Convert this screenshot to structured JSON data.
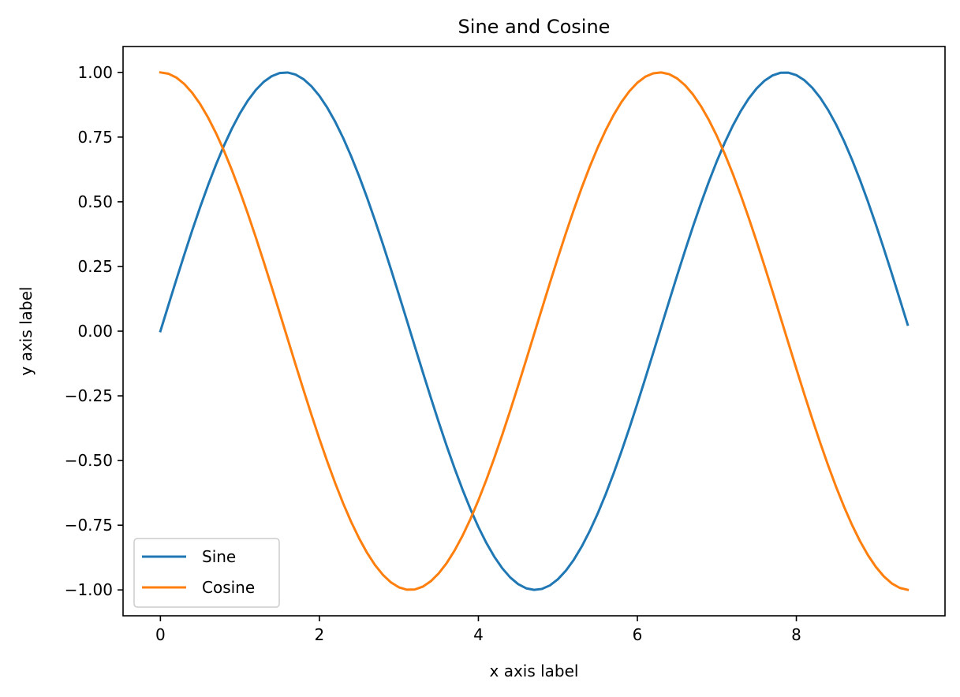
{
  "chart_data": {
    "type": "line",
    "title": "Sine and Cosine",
    "xlabel": "x axis label",
    "ylabel": "y axis label",
    "xlim": [
      -0.47,
      9.87
    ],
    "ylim": [
      -1.1,
      1.1
    ],
    "x_ticks": [
      {
        "value": 0,
        "label": "0"
      },
      {
        "value": 2,
        "label": "2"
      },
      {
        "value": 4,
        "label": "4"
      },
      {
        "value": 6,
        "label": "6"
      },
      {
        "value": 8,
        "label": "8"
      }
    ],
    "y_ticks": [
      {
        "value": 1.0,
        "label": "1.00"
      },
      {
        "value": 0.75,
        "label": "0.75"
      },
      {
        "value": 0.5,
        "label": "0.50"
      },
      {
        "value": 0.25,
        "label": "0.25"
      },
      {
        "value": 0.0,
        "label": "0.00"
      },
      {
        "value": -0.25,
        "label": "−0.25"
      },
      {
        "value": -0.5,
        "label": "−0.50"
      },
      {
        "value": -0.75,
        "label": "−0.75"
      },
      {
        "value": -1.0,
        "label": "−1.00"
      }
    ],
    "grid": false,
    "legend_position": "lower-left",
    "x": [
      0.0,
      0.1,
      0.2,
      0.3,
      0.4,
      0.5,
      0.6,
      0.7,
      0.8,
      0.9,
      1.0,
      1.1,
      1.2,
      1.3,
      1.4,
      1.5,
      1.6,
      1.7,
      1.8,
      1.9,
      2.0,
      2.1,
      2.2,
      2.3,
      2.4,
      2.5,
      2.6,
      2.7,
      2.8,
      2.9,
      3.0,
      3.1,
      3.2,
      3.3,
      3.4,
      3.5,
      3.6,
      3.7,
      3.8,
      3.9,
      4.0,
      4.1,
      4.2,
      4.3,
      4.4,
      4.5,
      4.6,
      4.7,
      4.8,
      4.9,
      5.0,
      5.1,
      5.2,
      5.3,
      5.4,
      5.5,
      5.6,
      5.7,
      5.8,
      5.9,
      6.0,
      6.1,
      6.2,
      6.3,
      6.4,
      6.5,
      6.6,
      6.7,
      6.8,
      6.9,
      7.0,
      7.1,
      7.2,
      7.3,
      7.4,
      7.5,
      7.6,
      7.7,
      7.8,
      7.9,
      8.0,
      8.1,
      8.2,
      8.3,
      8.4,
      8.5,
      8.6,
      8.7,
      8.8,
      8.9,
      9.0,
      9.1,
      9.2,
      9.3,
      9.4
    ],
    "series": [
      {
        "name": "Sine",
        "color": "#1f77b4",
        "values": [
          0.0,
          0.0998,
          0.1987,
          0.2955,
          0.3894,
          0.4794,
          0.5646,
          0.6442,
          0.7174,
          0.7833,
          0.8415,
          0.8912,
          0.932,
          0.9636,
          0.9854,
          0.9975,
          0.9996,
          0.9917,
          0.9738,
          0.9463,
          0.9093,
          0.8632,
          0.8085,
          0.7457,
          0.6755,
          0.5985,
          0.5155,
          0.4274,
          0.335,
          0.2392,
          0.1411,
          0.0416,
          -0.0584,
          -0.1577,
          -0.2555,
          -0.3508,
          -0.4425,
          -0.5298,
          -0.6119,
          -0.6878,
          -0.7568,
          -0.8183,
          -0.8716,
          -0.9162,
          -0.9516,
          -0.9775,
          -0.9937,
          -0.9999,
          -0.9962,
          -0.9825,
          -0.9589,
          -0.9258,
          -0.8835,
          -0.8323,
          -0.7728,
          -0.7055,
          -0.6313,
          -0.5507,
          -0.4646,
          -0.3739,
          -0.2794,
          -0.1822,
          -0.0831,
          0.0168,
          0.1165,
          0.2151,
          0.3115,
          0.4048,
          0.4941,
          0.5784,
          0.657,
          0.729,
          0.7937,
          0.8504,
          0.8987,
          0.938,
          0.968,
          0.9882,
          0.9985,
          0.9989,
          0.9894,
          0.9699,
          0.9407,
          0.9022,
          0.8546,
          0.7985,
          0.7344,
          0.663,
          0.5849,
          0.501,
          0.4121,
          0.319,
          0.2229,
          0.1245,
          0.025
        ]
      },
      {
        "name": "Cosine",
        "color": "#ff7f0e",
        "values": [
          1.0,
          0.995,
          0.9801,
          0.9553,
          0.9211,
          0.8776,
          0.8253,
          0.7648,
          0.6967,
          0.6216,
          0.5403,
          0.4536,
          0.3624,
          0.2675,
          0.17,
          0.0707,
          -0.0292,
          -0.1288,
          -0.2272,
          -0.3233,
          -0.4161,
          -0.5048,
          -0.5885,
          -0.6663,
          -0.7374,
          -0.8011,
          -0.8569,
          -0.904,
          -0.9422,
          -0.971,
          -0.99,
          -0.9991,
          -0.9983,
          -0.9875,
          -0.9668,
          -0.9365,
          -0.8968,
          -0.8481,
          -0.791,
          -0.7259,
          -0.6536,
          -0.5748,
          -0.4903,
          -0.4008,
          -0.3073,
          -0.2108,
          -0.1122,
          -0.0124,
          0.0875,
          0.1865,
          0.2837,
          0.378,
          0.4685,
          0.5544,
          0.6347,
          0.7087,
          0.7756,
          0.8347,
          0.8855,
          0.9275,
          0.9602,
          0.9833,
          0.9965,
          0.9999,
          0.9932,
          0.9766,
          0.9502,
          0.9144,
          0.8694,
          0.8157,
          0.7539,
          0.6845,
          0.6084,
          0.5261,
          0.4385,
          0.3466,
          0.2513,
          0.1534,
          0.054,
          -0.046,
          -0.1455,
          -0.2435,
          -0.3392,
          -0.4314,
          -0.5193,
          -0.602,
          -0.6787,
          -0.7486,
          -0.8111,
          -0.8654,
          -0.9111,
          -0.9477,
          -0.9748,
          -0.9922,
          -0.9997
        ]
      }
    ]
  }
}
